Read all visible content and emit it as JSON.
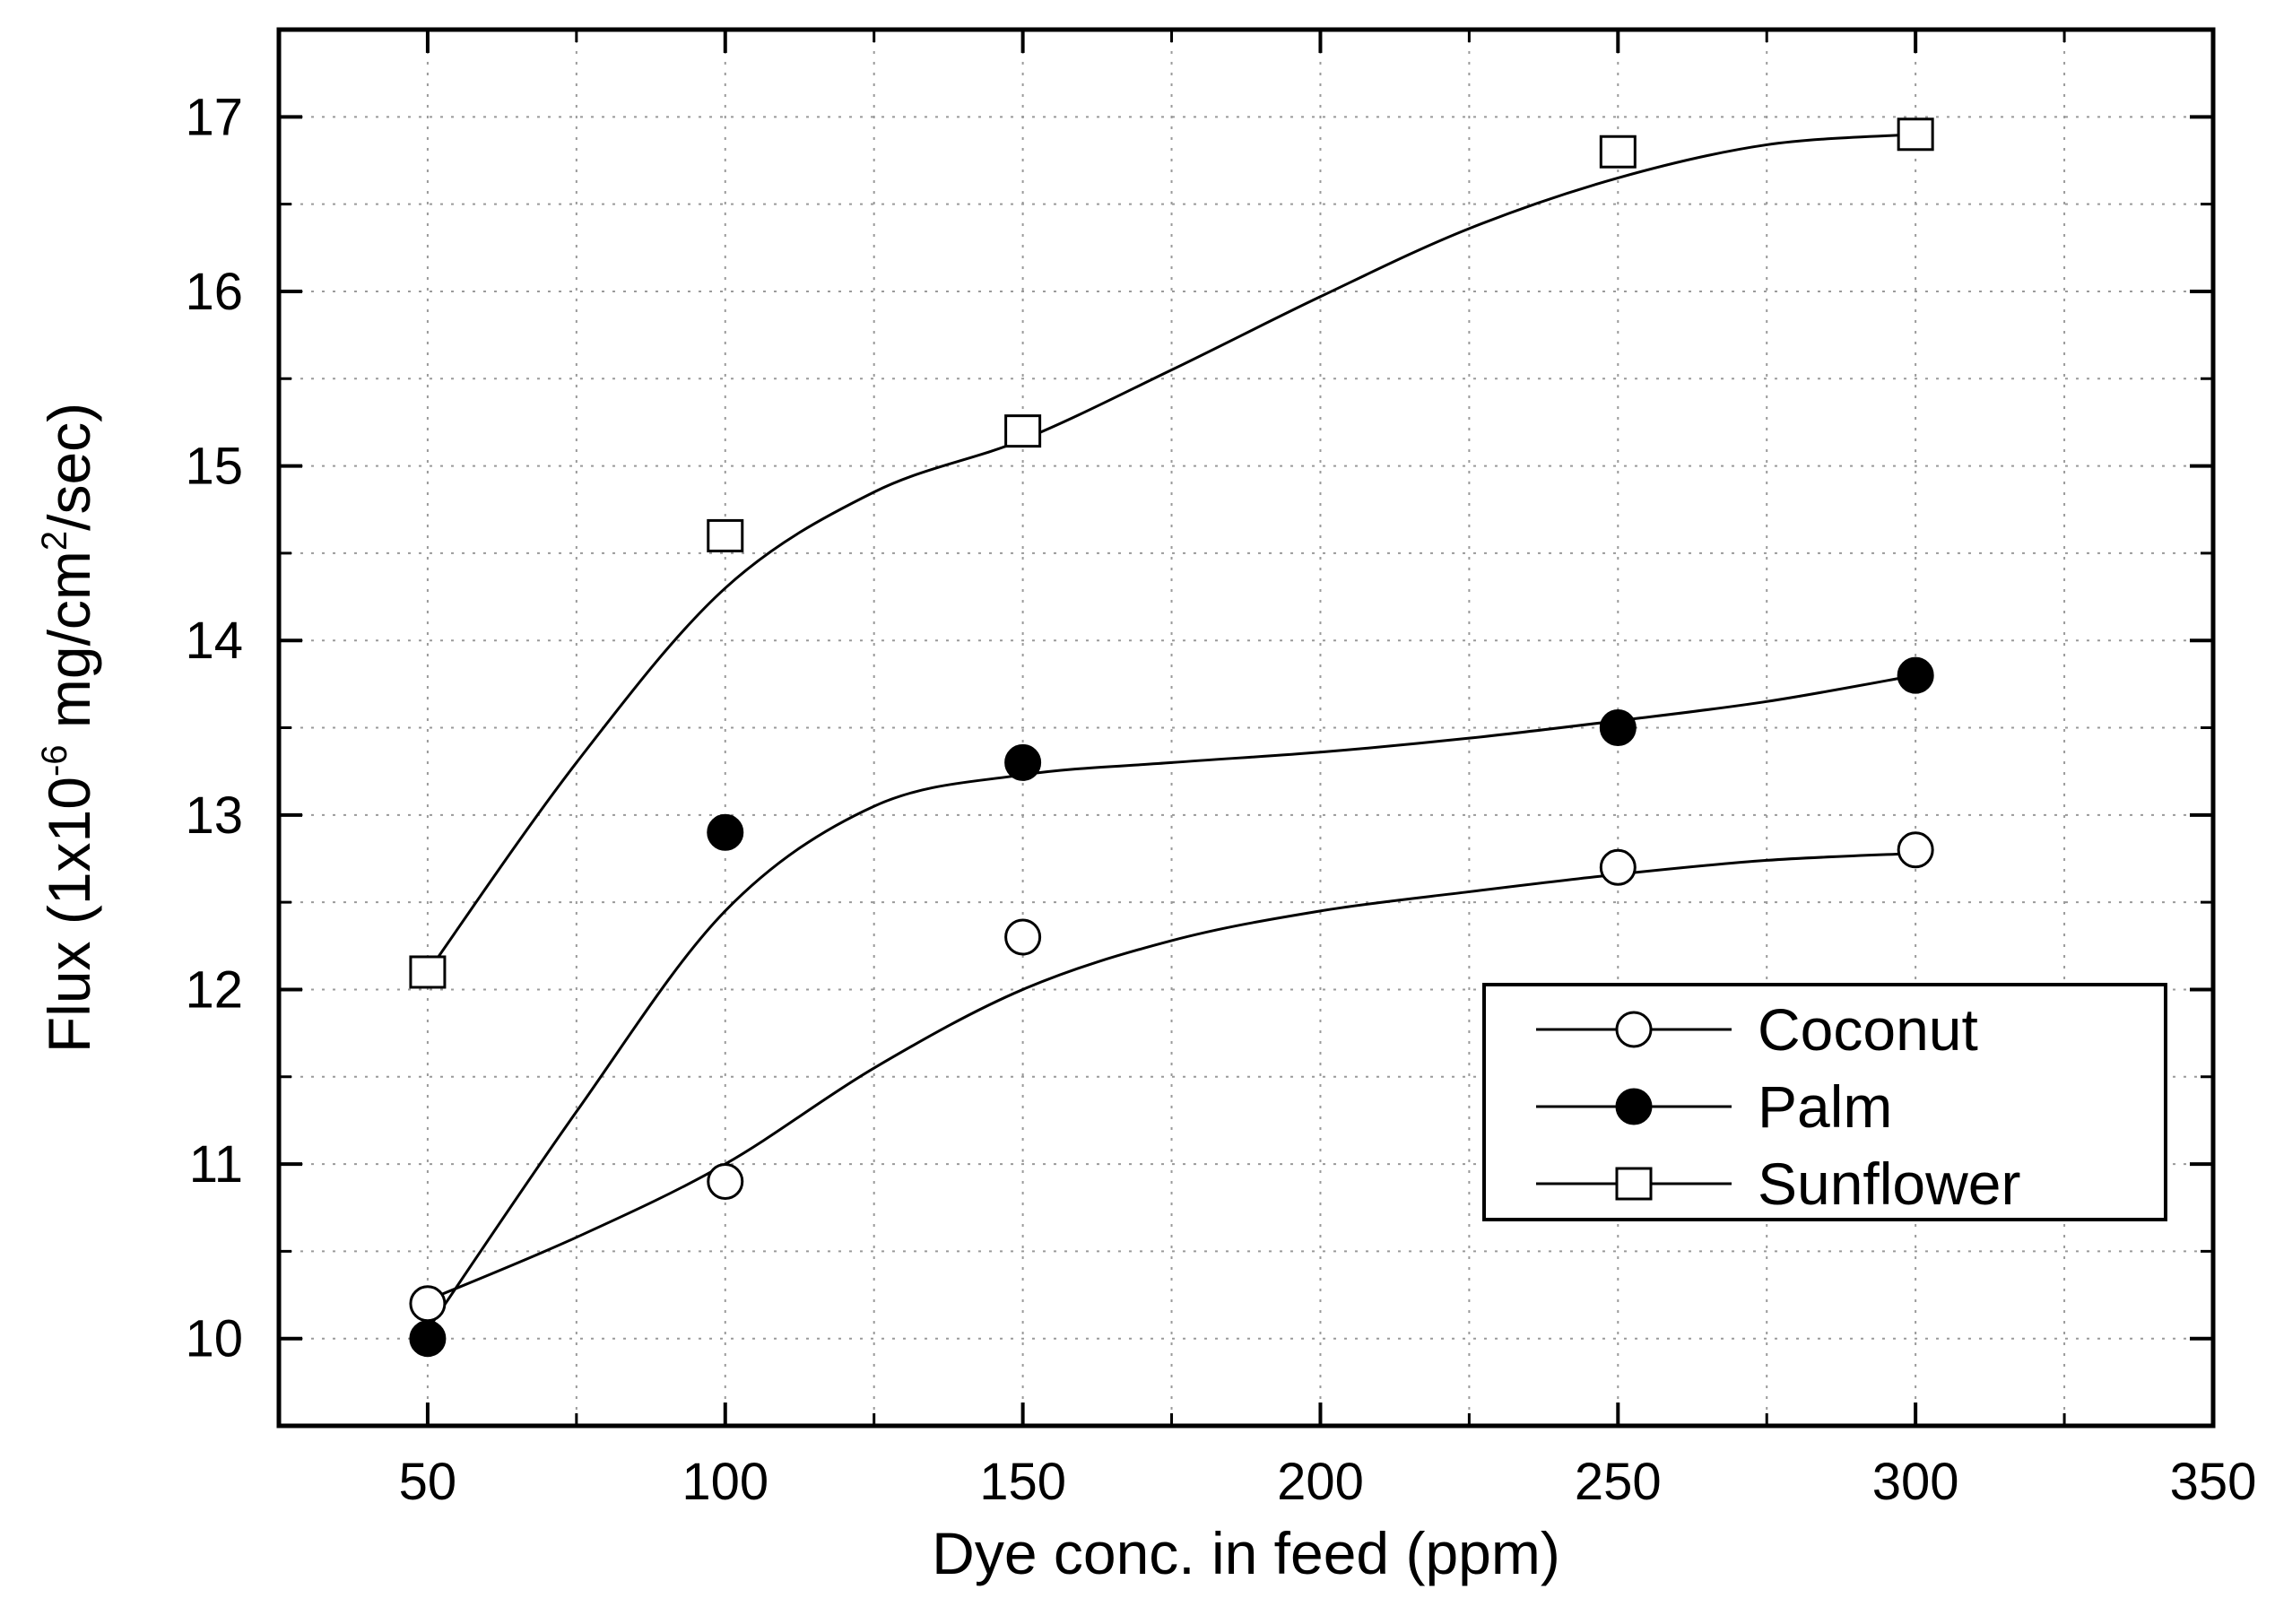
{
  "chart_data": {
    "type": "line",
    "title": "",
    "xlabel": "Dye conc. in feed (ppm)",
    "ylabel": {
      "prefix": "Flux (1x10",
      "exponent": "-6",
      "middle": " mg/cm",
      "exponent2": "2",
      "suffix": "/sec)"
    },
    "xlim": [
      25,
      350
    ],
    "ylim": [
      9.5,
      17.5
    ],
    "x_ticks": [
      50,
      100,
      150,
      200,
      250,
      300,
      350
    ],
    "y_ticks": [
      10,
      11,
      12,
      13,
      14,
      15,
      16,
      17
    ],
    "grid": "dotted",
    "legend_position": "bottom-right",
    "series": [
      {
        "name": "Coconut",
        "marker": "open-circle",
        "x": [
          50,
          100,
          150,
          250,
          300
        ],
        "y": [
          10.2,
          10.9,
          12.3,
          12.7,
          12.8
        ]
      },
      {
        "name": "Palm",
        "marker": "filled-circle",
        "x": [
          50,
          100,
          150,
          250,
          300
        ],
        "y": [
          10.0,
          12.9,
          13.3,
          13.5,
          13.8
        ]
      },
      {
        "name": "Sunflower",
        "marker": "open-square",
        "x": [
          50,
          100,
          150,
          250,
          300
        ],
        "y": [
          12.1,
          14.6,
          15.2,
          16.8,
          16.9
        ]
      }
    ],
    "fit_curves": [
      {
        "series": "Coconut",
        "points": [
          [
            50,
            10.22
          ],
          [
            75,
            10.58
          ],
          [
            100,
            11.0
          ],
          [
            125,
            11.55
          ],
          [
            150,
            12.0
          ],
          [
            175,
            12.28
          ],
          [
            200,
            12.45
          ],
          [
            225,
            12.56
          ],
          [
            250,
            12.66
          ],
          [
            275,
            12.74
          ],
          [
            300,
            12.78
          ]
        ]
      },
      {
        "series": "Palm",
        "points": [
          [
            50,
            10.05
          ],
          [
            75,
            11.3
          ],
          [
            100,
            12.45
          ],
          [
            125,
            13.05
          ],
          [
            150,
            13.23
          ],
          [
            175,
            13.3
          ],
          [
            200,
            13.36
          ],
          [
            225,
            13.44
          ],
          [
            250,
            13.54
          ],
          [
            275,
            13.65
          ],
          [
            300,
            13.8
          ]
        ]
      },
      {
        "series": "Sunflower",
        "points": [
          [
            50,
            12.1
          ],
          [
            75,
            13.3
          ],
          [
            100,
            14.3
          ],
          [
            125,
            14.85
          ],
          [
            150,
            15.15
          ],
          [
            175,
            15.55
          ],
          [
            200,
            15.97
          ],
          [
            225,
            16.36
          ],
          [
            250,
            16.65
          ],
          [
            275,
            16.84
          ],
          [
            300,
            16.9
          ]
        ]
      }
    ]
  }
}
